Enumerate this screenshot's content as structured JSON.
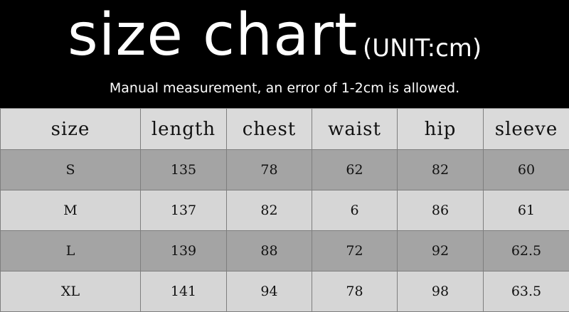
{
  "header": {
    "title": "size chart",
    "unit": "(UNIT:cm)",
    "note": "Manual measurement, an error of 1-2cm is allowed."
  },
  "colors": {
    "header_bg": "#000000",
    "row_light": "#d6d6d6",
    "row_dark": "#a4a4a4",
    "border": "#7e7e7e"
  },
  "table": {
    "columns": [
      "size",
      "length",
      "chest",
      "waist",
      "hip",
      "sleeve"
    ],
    "rows": [
      [
        "S",
        "135",
        "78",
        "62",
        "82",
        "60"
      ],
      [
        "M",
        "137",
        "82",
        "6",
        "86",
        "61"
      ],
      [
        "L",
        "139",
        "88",
        "72",
        "92",
        "62.5"
      ],
      [
        "XL",
        "141",
        "94",
        "78",
        "98",
        "63.5"
      ]
    ]
  }
}
